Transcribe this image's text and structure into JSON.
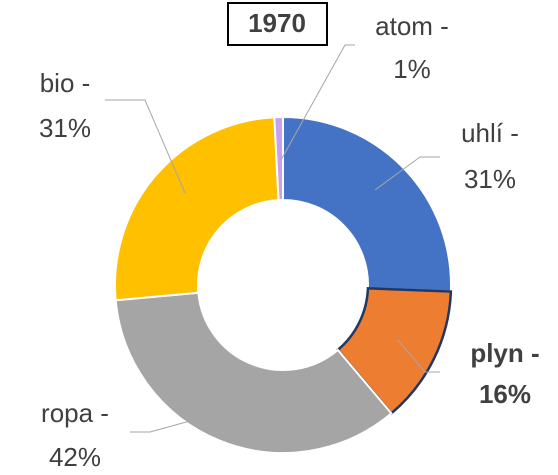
{
  "chart_data": {
    "type": "donut",
    "title": "1970",
    "categories": [
      "uhlí",
      "plyn",
      "ropa",
      "bio",
      "atom"
    ],
    "values": [
      31,
      16,
      42,
      31,
      1
    ],
    "value_labels": [
      "31%",
      "16%",
      "42%",
      "31%",
      "1%"
    ],
    "separator": " -",
    "colors": [
      "#4472c4",
      "#ed7d31",
      "#a5a5a5",
      "#ffc000",
      "#c9a0f0"
    ],
    "highlight": "plyn"
  }
}
